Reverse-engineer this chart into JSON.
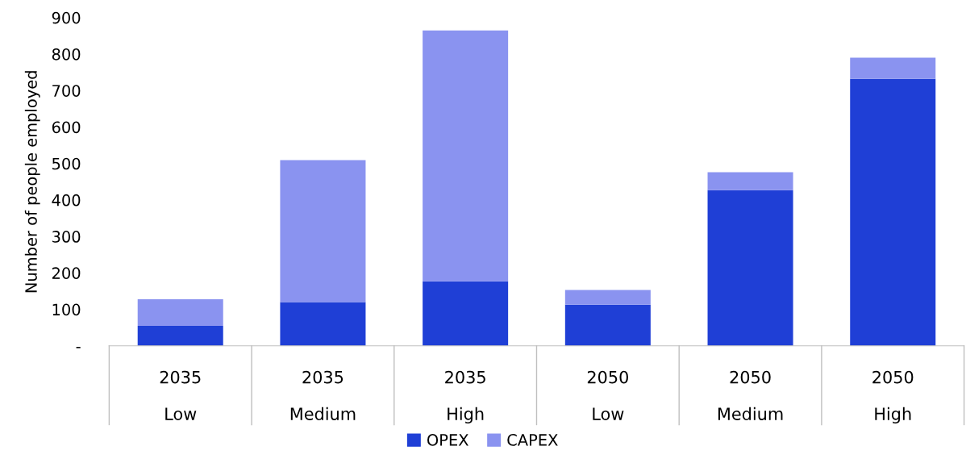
{
  "chart_data": {
    "type": "bar",
    "stacked": true,
    "ylabel": "Number of people employed",
    "categories": [
      "2035\nLow",
      "2035\nMedium",
      "2035\nHigh",
      "2050\nLow",
      "2050\nMedium",
      "2050\nHigh"
    ],
    "series": [
      {
        "name": "OPEX",
        "color": "#1f3fd6",
        "values": [
          55,
          120,
          177,
          113,
          427,
          732
        ]
      },
      {
        "name": "CAPEX",
        "color": "#8a93f0",
        "values": [
          73,
          389,
          688,
          40,
          49,
          58
        ]
      }
    ],
    "ylim": [
      0,
      900
    ],
    "yticks": [
      {
        "value": 0,
        "label": "-"
      },
      100,
      200,
      300,
      400,
      500,
      600,
      700,
      800,
      900
    ],
    "grid": false,
    "legend": "bottom"
  }
}
